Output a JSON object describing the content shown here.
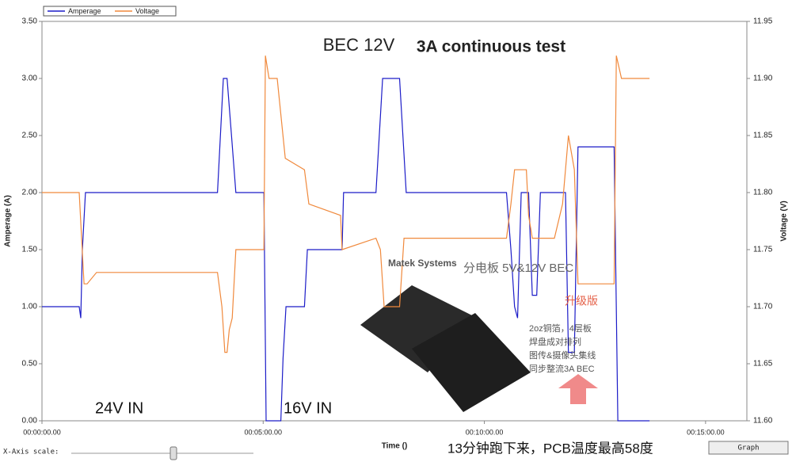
{
  "chart_data": {
    "type": "line",
    "title": "BEC 12V",
    "subtitle": "3A continuous test",
    "x_label": "Time ()",
    "y_label": "Amperage (A)",
    "y2_label": "Voltage (V)",
    "xlim": [
      0,
      956
    ],
    "xticks": [
      {
        "value": 0,
        "label": "00:00:00.00"
      },
      {
        "value": 300,
        "label": "00:05:00.00"
      },
      {
        "value": 600,
        "label": "00:10:00.00"
      },
      {
        "value": 900,
        "label": "00:15:00.00"
      }
    ],
    "ylim": [
      0,
      3.5
    ],
    "yticks": [
      {
        "value": 0,
        "label": "0.00"
      },
      {
        "value": 0.5,
        "label": "0.50"
      },
      {
        "value": 1,
        "label": "1.00"
      },
      {
        "value": 1.5,
        "label": "1.50"
      },
      {
        "value": 2,
        "label": "2.00"
      },
      {
        "value": 2.5,
        "label": "2.50"
      },
      {
        "value": 3,
        "label": "3.00"
      },
      {
        "value": 3.5,
        "label": "3.50"
      }
    ],
    "y2lim": [
      11.6,
      11.95
    ],
    "y2ticks": [
      {
        "value": 11.6,
        "label": "11.60"
      },
      11.65,
      {
        "value": 11.7,
        "label": "11.70"
      },
      11.75,
      {
        "value": 11.8,
        "label": "11.80"
      },
      11.85,
      {
        "value": 11.9,
        "label": "11.90"
      },
      11.95
    ],
    "legend": "top-left",
    "series": [
      {
        "name": "Amperage",
        "color": "#1c1cc8",
        "x": [
          0,
          50.5,
          52.6,
          54.8,
          59,
          238,
          246,
          251,
          257,
          263,
          301,
          304,
          324,
          327,
          331,
          356,
          360,
          407,
          409,
          453,
          462,
          485,
          494,
          630,
          636,
          641,
          645,
          650,
          660,
          665,
          671,
          676,
          710,
          714,
          722,
          727,
          776,
          781,
          824
        ],
        "values": [
          1.0,
          1.0,
          0.9,
          1.5,
          2.0,
          2.0,
          3.0,
          3.0,
          2.5,
          2.0,
          2.0,
          0.0,
          0.0,
          0.55,
          1.0,
          1.0,
          1.5,
          1.5,
          2.0,
          2.0,
          3.0,
          3.0,
          2.0,
          2.0,
          1.5,
          1.0,
          0.9,
          2.0,
          2.0,
          1.1,
          1.1,
          2.0,
          2.0,
          0.6,
          0.6,
          2.4,
          2.4,
          0.0,
          0.0
        ]
      },
      {
        "name": "Voltage",
        "color": "#f0893c",
        "axis": "y2",
        "x": [
          0,
          50.5,
          57,
          61.2,
          74,
          238,
          244,
          248,
          251,
          254,
          258,
          263,
          301,
          303,
          308,
          319,
          330,
          356,
          362,
          405,
          407,
          453,
          459,
          464,
          485,
          491,
          630,
          636,
          641,
          657,
          660,
          665,
          695,
          706,
          714,
          722,
          727,
          776,
          779,
          786,
          824
        ],
        "values": [
          11.8,
          11.8,
          11.72,
          11.72,
          11.73,
          11.73,
          11.7,
          11.66,
          11.66,
          11.68,
          11.69,
          11.75,
          11.75,
          11.92,
          11.9,
          11.9,
          11.83,
          11.82,
          11.79,
          11.78,
          11.75,
          11.76,
          11.75,
          11.7,
          11.7,
          11.76,
          11.76,
          11.79,
          11.82,
          11.82,
          11.78,
          11.76,
          11.76,
          11.79,
          11.85,
          11.82,
          11.72,
          11.72,
          11.92,
          11.9,
          11.9
        ]
      }
    ],
    "annotations": [
      "24V IN",
      "16V IN",
      "13分钟跑下来，PCB温度最高58度",
      "Matek Systems",
      "分电板 5V&12V BEC",
      "升级版",
      "2oz铜箔，4层板",
      "焊盘成对排列",
      "图传&摄像头集线",
      "同步整流3A BEC"
    ]
  },
  "controls": {
    "scale_label": "X-Axis scale:",
    "button": "Graph"
  }
}
